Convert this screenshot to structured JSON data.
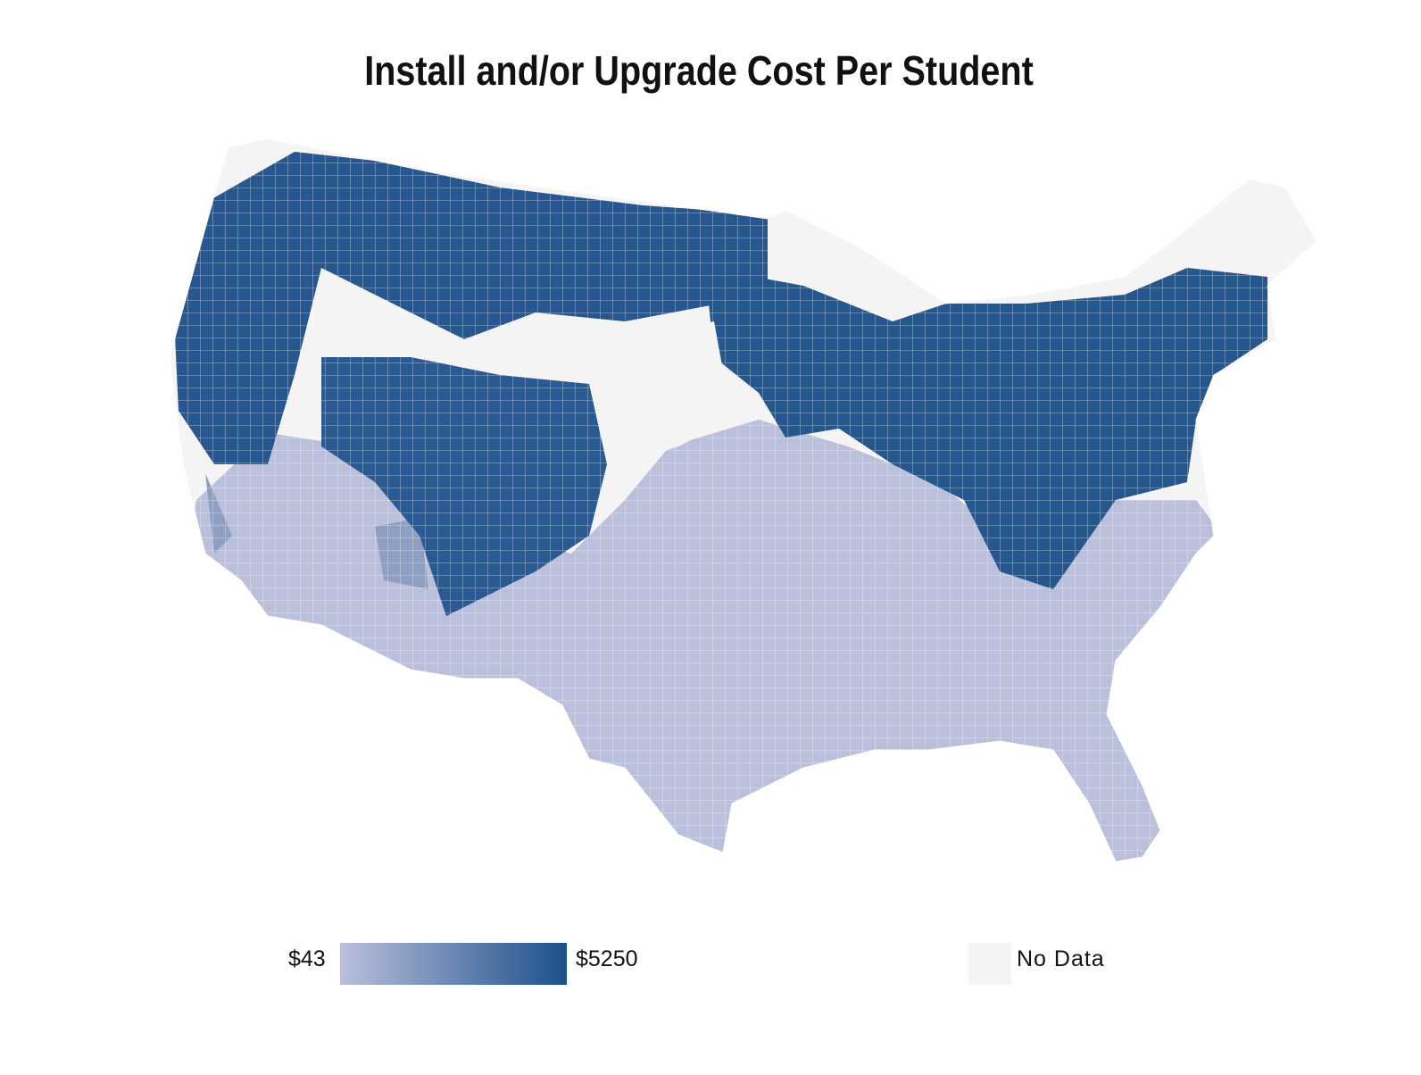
{
  "title": "Install and/or Upgrade Cost Per Student",
  "legend": {
    "min_label": "$43",
    "max_label": "$5250",
    "min_value": 43,
    "max_value": 5250,
    "min_color": "#babfdc",
    "max_color": "#1c4f8b",
    "no_data_label": "No Data",
    "no_data_color": "#f4f4f4"
  },
  "map_data": {
    "type": "choropleth",
    "geography": "US counties (contiguous states)",
    "pattern": {
      "north_and_west": "high",
      "south_and_southwest": "low"
    }
  }
}
